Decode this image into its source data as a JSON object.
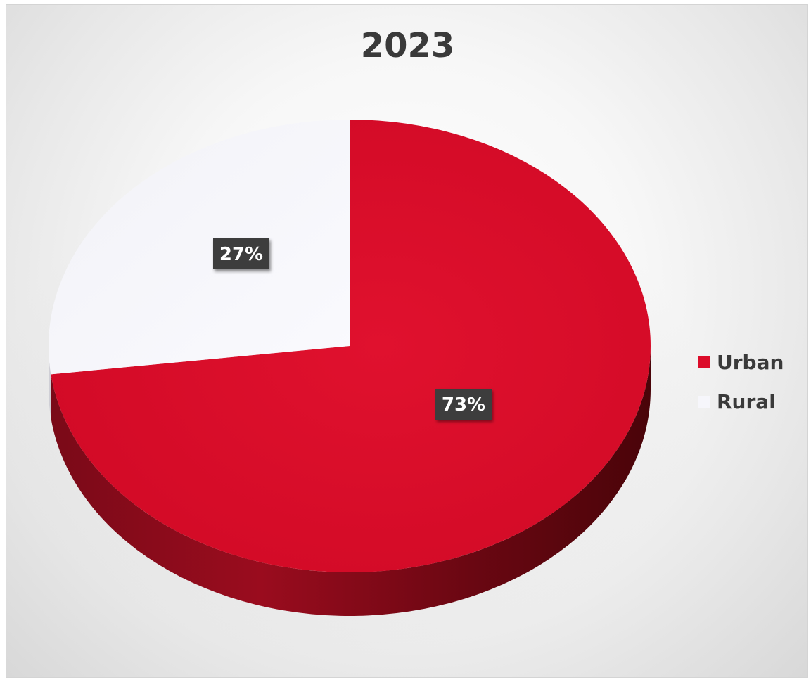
{
  "chart_data": {
    "type": "pie",
    "title": "2023",
    "categories": [
      "Urban",
      "Rural"
    ],
    "values": [
      73,
      27
    ],
    "data_labels": [
      "73%",
      "27%"
    ],
    "colors": [
      "#dc0c2a",
      "#f6f6fb"
    ],
    "label_box_color": "#3c3c3c",
    "legend": {
      "position": "right",
      "entries": [
        {
          "label": "Urban",
          "color": "#dc0c2a"
        },
        {
          "label": "Rural",
          "color": "#f6f6fb"
        }
      ]
    },
    "style": "3d"
  }
}
